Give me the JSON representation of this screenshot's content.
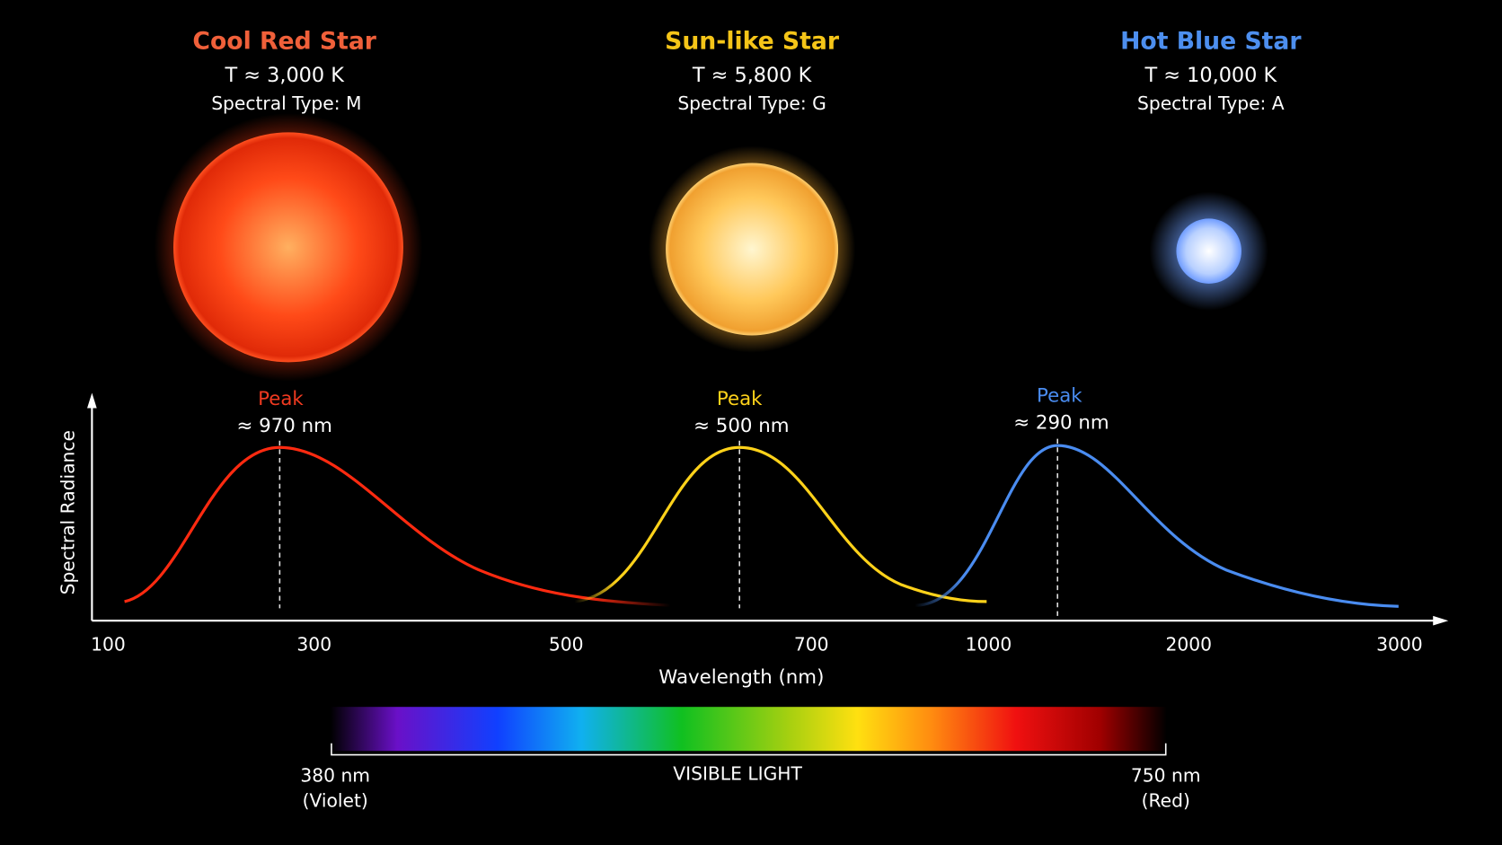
{
  "stars": [
    {
      "name": "Cool Red Star",
      "temperature": "T ≈ 3,000 K",
      "spectral_type": "Spectral Type: M",
      "peak_label": "Peak",
      "peak_value": "≈ 970 nm"
    },
    {
      "name": "Sun-like Star",
      "temperature": "T ≈ 5,800 K",
      "spectral_type": "Spectral Type: G",
      "peak_label": "Peak",
      "peak_value": "≈ 500 nm"
    },
    {
      "name": "Hot Blue Star",
      "temperature": "T ≈ 10,000 K",
      "spectral_type": "Spectral Type:  A",
      "peak_label": "Peak",
      "peak_value": "≈ 290 nm"
    }
  ],
  "plot": {
    "y_axis_label": "Spectral Radiance",
    "x_axis_label": "Wavelength (nm)",
    "x_tick_labels": [
      "100",
      "300",
      "500",
      "700",
      "1000",
      "2000",
      "3000"
    ]
  },
  "visible_light": {
    "title": "VISIBLE LIGHT",
    "left_label": [
      "380 nm",
      "(Violet)"
    ],
    "right_label": [
      "750 nm",
      "(Red)"
    ]
  }
}
